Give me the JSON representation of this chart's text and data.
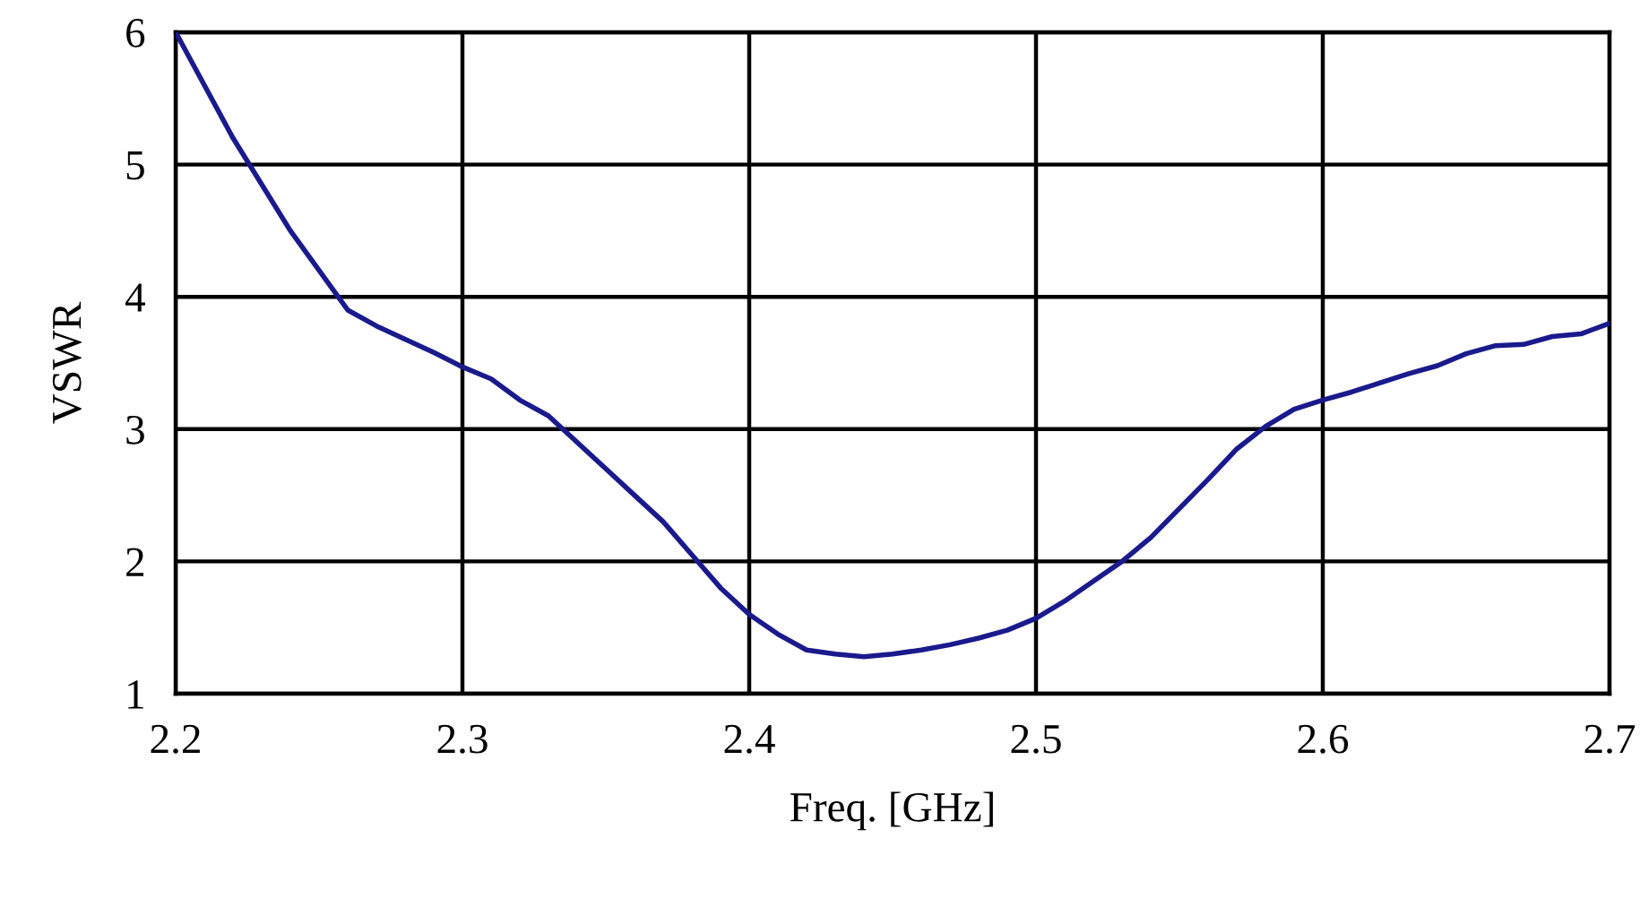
{
  "chart_data": {
    "type": "line",
    "xlabel": "Freq. [GHz]",
    "ylabel": "VSWR",
    "xlim": [
      2.2,
      2.7
    ],
    "ylim": [
      1,
      6
    ],
    "xticks": [
      2.2,
      2.3,
      2.4,
      2.5,
      2.6,
      2.7
    ],
    "yticks": [
      1,
      2,
      3,
      4,
      5,
      6
    ],
    "grid": true,
    "series": [
      {
        "color": "#1a1a8c",
        "x": [
          2.2,
          2.21,
          2.22,
          2.23,
          2.24,
          2.25,
          2.26,
          2.27,
          2.28,
          2.29,
          2.3,
          2.31,
          2.32,
          2.33,
          2.34,
          2.35,
          2.36,
          2.37,
          2.38,
          2.39,
          2.4,
          2.41,
          2.42,
          2.43,
          2.44,
          2.45,
          2.46,
          2.47,
          2.48,
          2.49,
          2.5,
          2.51,
          2.52,
          2.53,
          2.54,
          2.55,
          2.56,
          2.57,
          2.58,
          2.59,
          2.6,
          2.61,
          2.62,
          2.63,
          2.64,
          2.65,
          2.66,
          2.67,
          2.68,
          2.69,
          2.7
        ],
        "values": [
          6.0,
          5.6,
          5.2,
          4.85,
          4.5,
          4.2,
          3.9,
          3.78,
          3.68,
          3.58,
          3.47,
          3.38,
          3.22,
          3.1,
          2.9,
          2.7,
          2.5,
          2.3,
          2.05,
          1.8,
          1.6,
          1.45,
          1.33,
          1.3,
          1.28,
          1.3,
          1.33,
          1.37,
          1.42,
          1.48,
          1.57,
          1.7,
          1.85,
          2.0,
          2.18,
          2.4,
          2.62,
          2.85,
          3.02,
          3.15,
          3.22,
          3.28,
          3.35,
          3.42,
          3.48,
          3.57,
          3.63,
          3.64,
          3.7,
          3.72,
          3.8
        ]
      }
    ]
  }
}
